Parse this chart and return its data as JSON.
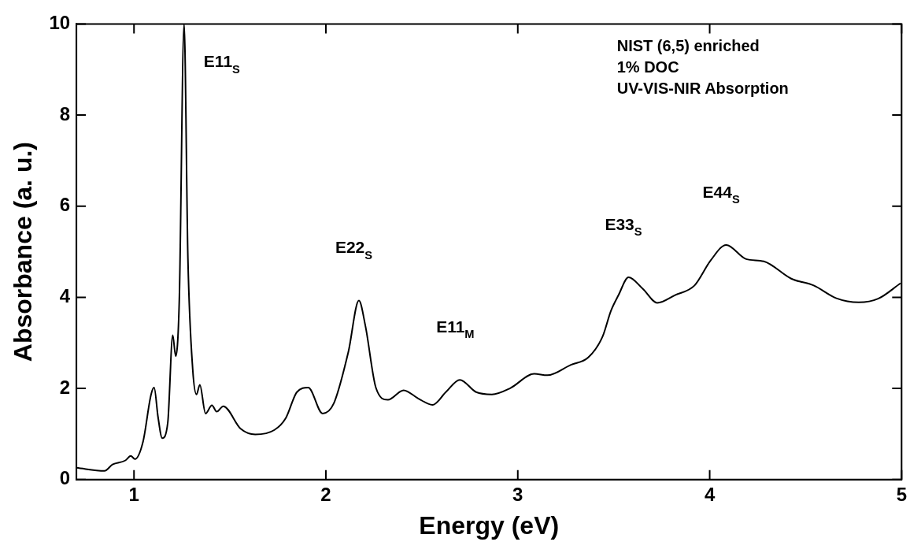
{
  "chart_data": {
    "type": "line",
    "xlabel": "Energy (eV)",
    "ylabel": "Absorbance (a. u.)",
    "xlim": [
      0.7,
      5
    ],
    "xticks": [
      1,
      2,
      3,
      4,
      5
    ],
    "ylim": [
      0,
      10
    ],
    "yticks": [
      0,
      2,
      4,
      6,
      8,
      10
    ],
    "grid": false,
    "legend": false,
    "marker": "none",
    "line_style": "solid",
    "annotations": [
      "NIST (6,5) enriched",
      "1% DOC",
      "UV-VIS-NIR Absorption",
      {
        "text": "E11$_{S}$",
        "x": 1.261,
        "y": 10
      },
      {
        "text": "E22$_{S}$",
        "x": 2.172,
        "y": 3.93
      },
      {
        "text": "E11$_{M}$",
        "x": 2.698,
        "y": 2.19
      },
      {
        "text": "E33$_{S}$",
        "x": 3.577,
        "y": 4.44
      },
      {
        "text": "E44$_{S}$",
        "x": 4.086,
        "y": 5.15
      }
    ],
    "series": [
      {
        "color": "#000000",
        "x": [
          0.7,
          0.846,
          0.888,
          0.955,
          0.983,
          1.005,
          1.047,
          1.089,
          1.105,
          1.125,
          1.147,
          1.176,
          1.202,
          1.217,
          1.236,
          1.261,
          1.281,
          1.306,
          1.326,
          1.343,
          1.373,
          1.406,
          1.431,
          1.465,
          1.557,
          1.632,
          1.732,
          1.791,
          1.849,
          1.908,
          1.983,
          2.041,
          2.117,
          2.172,
          2.206,
          2.261,
          2.323,
          2.405,
          2.481,
          2.556,
          2.625,
          2.698,
          2.783,
          2.865,
          2.962,
          3.085,
          3.154,
          3.277,
          3.367,
          3.442,
          3.485,
          3.525,
          3.577,
          3.651,
          3.727,
          3.82,
          3.921,
          4.005,
          4.086,
          4.19,
          4.282,
          4.425,
          4.542,
          4.66,
          4.777,
          4.878,
          4.995
        ],
        "values": [
          0.26,
          0.19,
          0.33,
          0.42,
          0.52,
          0.45,
          0.83,
          1.87,
          2.02,
          1.38,
          0.91,
          1.25,
          3.17,
          2.71,
          3.94,
          10,
          4.84,
          2.42,
          1.87,
          2.08,
          1.45,
          1.63,
          1.49,
          1.61,
          1.11,
          0.99,
          1.09,
          1.35,
          1.92,
          2.02,
          1.45,
          1.67,
          2.8,
          3.93,
          3.37,
          2.01,
          1.75,
          1.96,
          1.78,
          1.64,
          1.92,
          2.19,
          1.92,
          1.87,
          2.01,
          2.32,
          2.29,
          2.52,
          2.68,
          3.14,
          3.7,
          4.05,
          4.44,
          4.19,
          3.88,
          4.05,
          4.26,
          4.81,
          5.15,
          4.84,
          4.79,
          4.41,
          4.26,
          3.98,
          3.89,
          3.97,
          4.31
        ]
      }
    ]
  }
}
